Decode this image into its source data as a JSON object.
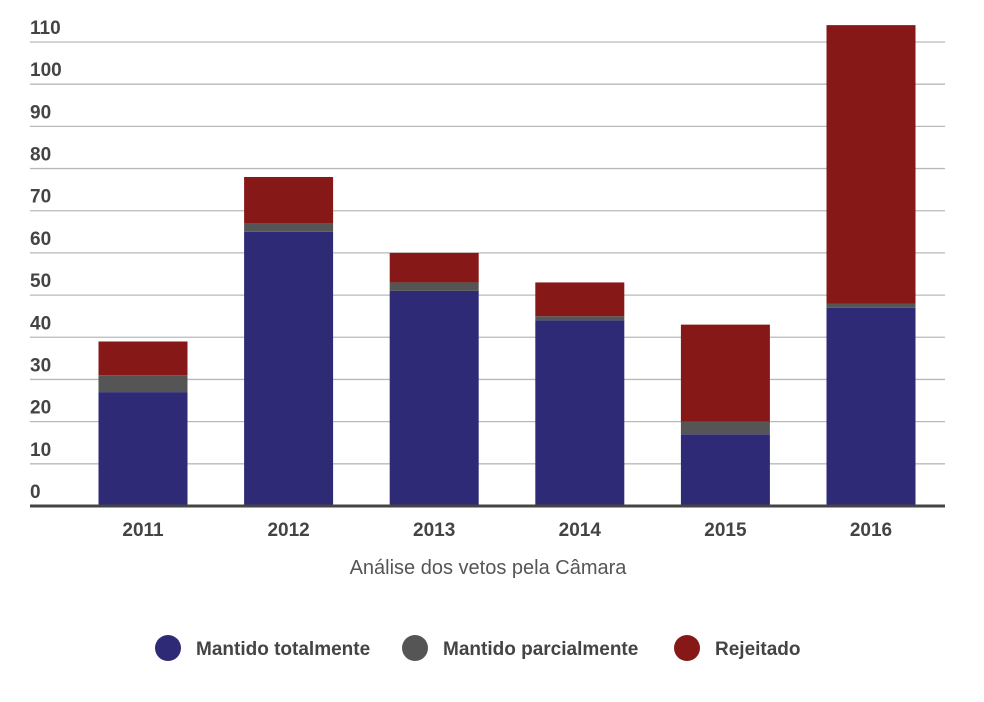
{
  "chart_data": {
    "type": "bar",
    "stacked": true,
    "categories": [
      "2011",
      "2012",
      "2013",
      "2014",
      "2015",
      "2016"
    ],
    "series": [
      {
        "name": "Mantido totalmente",
        "color": "#2e2a76",
        "values": [
          27,
          65,
          51,
          44,
          17,
          47
        ]
      },
      {
        "name": "Mantido parcialmente",
        "color": "#555555",
        "values": [
          4,
          2,
          2,
          1,
          3,
          1
        ]
      },
      {
        "name": "Rejeitado",
        "color": "#861818",
        "values": [
          8,
          11,
          7,
          8,
          23,
          66
        ]
      }
    ],
    "title": "",
    "xlabel": "Análise dos vetos pela Câmara",
    "ylabel": "",
    "ylim": [
      0,
      110
    ],
    "yticks": [
      0,
      10,
      20,
      30,
      40,
      50,
      60,
      70,
      80,
      90,
      100,
      110
    ],
    "grid": true,
    "legend_position": "bottom"
  }
}
